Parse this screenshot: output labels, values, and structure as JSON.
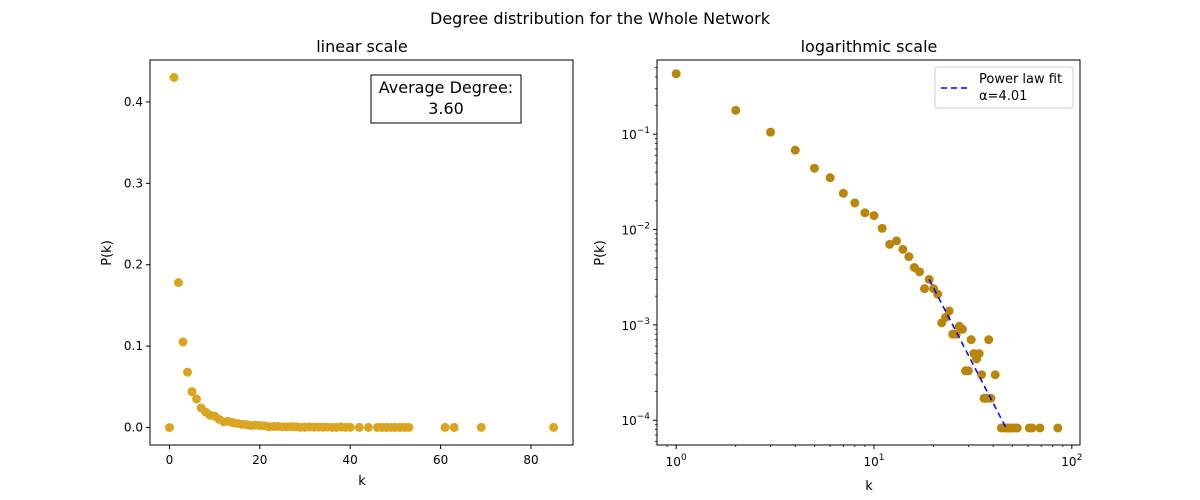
{
  "figure": {
    "title": "Degree distribution for the Whole Network"
  },
  "chart_data": [
    {
      "type": "scatter",
      "title": "linear scale",
      "xlabel": "k",
      "ylabel": "P(k)",
      "xlim": [
        -4.3,
        89.3
      ],
      "ylim": [
        -0.0215,
        0.4515
      ],
      "x_ticks": [
        0,
        20,
        40,
        60,
        80
      ],
      "y_ticks": [
        0.0,
        0.1,
        0.2,
        0.3,
        0.4
      ],
      "x_tick_labels": [
        "0",
        "20",
        "40",
        "60",
        "80"
      ],
      "y_tick_labels": [
        "0.0",
        "0.1",
        "0.2",
        "0.3",
        "0.4"
      ],
      "grid": false,
      "marker_color": "#daa520",
      "annotation": {
        "line1": "Average Degree:",
        "line2": "3.60"
      },
      "points": [
        [
          0,
          0.0
        ],
        [
          1,
          0.43
        ],
        [
          2,
          0.178
        ],
        [
          3,
          0.105
        ],
        [
          4,
          0.068
        ],
        [
          5,
          0.044
        ],
        [
          6,
          0.035
        ],
        [
          7,
          0.024
        ],
        [
          8,
          0.019
        ],
        [
          9,
          0.015
        ],
        [
          10,
          0.014
        ],
        [
          11,
          0.01
        ],
        [
          12,
          0.007
        ],
        [
          13,
          0.0075
        ],
        [
          14,
          0.006
        ],
        [
          15,
          0.005
        ],
        [
          16,
          0.004
        ],
        [
          17,
          0.0035
        ],
        [
          18,
          0.0024
        ],
        [
          19,
          0.003
        ],
        [
          20,
          0.0024
        ],
        [
          21,
          0.0021
        ],
        [
          22,
          0.001
        ],
        [
          23,
          0.0012
        ],
        [
          24,
          0.0014
        ],
        [
          25,
          0.0008
        ],
        [
          26,
          0.0008
        ],
        [
          27,
          0.001
        ],
        [
          28,
          0.0009
        ],
        [
          29,
          0.0003
        ],
        [
          30,
          0.0003
        ],
        [
          31,
          0.0007
        ],
        [
          32,
          0.0005
        ],
        [
          33,
          0.0005
        ],
        [
          34,
          0.0004
        ],
        [
          35,
          0.0005
        ],
        [
          36,
          0.00017
        ],
        [
          37,
          0.00017
        ],
        [
          38,
          0.0007
        ],
        [
          39,
          0.00017
        ],
        [
          40,
          0.0003
        ],
        [
          42,
          0.0001
        ],
        [
          44,
          0.0001
        ],
        [
          46,
          0.0001
        ],
        [
          47,
          0.0001
        ],
        [
          48,
          0.0001
        ],
        [
          49,
          0.0001
        ],
        [
          50,
          0.0001
        ],
        [
          51,
          0.0001
        ],
        [
          52,
          0.0001
        ],
        [
          53,
          0.0001
        ],
        [
          61,
          0.0001
        ],
        [
          63,
          0.0001
        ],
        [
          69,
          0.0001
        ],
        [
          85,
          0.0001
        ]
      ]
    },
    {
      "type": "scatter",
      "title": "logarithmic scale",
      "xlabel": "k",
      "ylabel": "P(k)",
      "x_scale": "log",
      "y_scale": "log",
      "xlim": [
        0.8,
        110
      ],
      "ylim": [
        5.5e-05,
        0.6
      ],
      "x_ticks": [
        1,
        10,
        100
      ],
      "x_tick_labels": [
        {
          "base": "10",
          "exp": "0"
        },
        {
          "base": "10",
          "exp": "1"
        },
        {
          "base": "10",
          "exp": "2"
        }
      ],
      "y_ticks": [
        0.0001,
        0.001,
        0.01,
        0.1
      ],
      "y_tick_labels": [
        {
          "base": "10",
          "exp": "−4"
        },
        {
          "base": "10",
          "exp": "−3"
        },
        {
          "base": "10",
          "exp": "−2"
        },
        {
          "base": "10",
          "exp": "−1"
        }
      ],
      "grid": false,
      "marker_color": "#b8860b",
      "legend": {
        "position": "top-right",
        "line1": "Power law fit",
        "line2": "α=4.01"
      },
      "fit_line": {
        "name": "Power law fit",
        "alpha": 4.01,
        "color": "#0000ff",
        "style": "dashed",
        "x_range": [
          19,
          47
        ],
        "y_at_start": 0.003
      },
      "points": [
        [
          1,
          0.43
        ],
        [
          2,
          0.178
        ],
        [
          3,
          0.105
        ],
        [
          4,
          0.068
        ],
        [
          5,
          0.044
        ],
        [
          6,
          0.035
        ],
        [
          7,
          0.024
        ],
        [
          8,
          0.019
        ],
        [
          9,
          0.015
        ],
        [
          10,
          0.014
        ],
        [
          11,
          0.0103
        ],
        [
          12,
          0.007
        ],
        [
          13,
          0.0076
        ],
        [
          14,
          0.0062
        ],
        [
          15,
          0.0052
        ],
        [
          16,
          0.004
        ],
        [
          17,
          0.0036
        ],
        [
          18,
          0.0024
        ],
        [
          19,
          0.003
        ],
        [
          20,
          0.0024
        ],
        [
          21,
          0.0021
        ],
        [
          22,
          0.00105
        ],
        [
          23,
          0.0012
        ],
        [
          24,
          0.0014
        ],
        [
          25,
          0.0008
        ],
        [
          26,
          0.0008
        ],
        [
          27,
          0.00097
        ],
        [
          28,
          0.0009
        ],
        [
          29,
          0.00033
        ],
        [
          30,
          0.00033
        ],
        [
          31,
          0.0007
        ],
        [
          32,
          0.0005
        ],
        [
          33,
          0.00044
        ],
        [
          34,
          0.0005
        ],
        [
          35,
          0.0003
        ],
        [
          36,
          0.00017
        ],
        [
          37,
          0.00017
        ],
        [
          38,
          0.0007
        ],
        [
          39,
          0.00017
        ],
        [
          41,
          0.0003
        ],
        [
          44,
          8.3e-05
        ],
        [
          46,
          8.3e-05
        ],
        [
          47,
          8.3e-05
        ],
        [
          48,
          8.3e-05
        ],
        [
          49,
          8.3e-05
        ],
        [
          50,
          8.3e-05
        ],
        [
          51,
          8.3e-05
        ],
        [
          53,
          8.3e-05
        ],
        [
          61,
          8.3e-05
        ],
        [
          63,
          8.3e-05
        ],
        [
          69,
          8.3e-05
        ],
        [
          85,
          8.3e-05
        ]
      ]
    }
  ]
}
